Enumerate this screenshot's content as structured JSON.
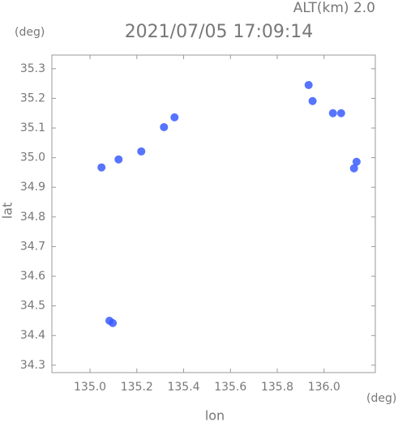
{
  "chart_data": {
    "type": "scatter",
    "title": "2021/07/05 17:09:14",
    "subtitle": "ALT(km) 2.0",
    "y_unit": "(deg)",
    "x_unit": "(deg)",
    "ylabel": "lat",
    "xlabel": "lon",
    "color": "#3a5cff",
    "x": [
      135.934,
      135.951,
      136.038,
      136.073,
      136.139,
      136.128,
      135.049,
      135.122,
      135.219,
      135.316,
      135.361,
      135.083,
      135.097
    ],
    "values": [
      35.245,
      35.191,
      35.15,
      35.15,
      34.986,
      34.964,
      34.967,
      34.994,
      35.021,
      35.103,
      35.136,
      34.45,
      34.442
    ],
    "xlim": [
      134.837,
      136.219
    ],
    "ylim": [
      34.275,
      35.346
    ],
    "xticks": [
      {
        "value": 135,
        "label": "135.0"
      },
      135.2,
      135.4,
      135.6,
      135.8,
      {
        "value": 136,
        "label": "136.0"
      }
    ],
    "yticks": [
      34.3,
      34.4,
      34.5,
      34.6,
      34.7,
      34.8,
      34.9,
      {
        "value": 35,
        "label": "35.0"
      },
      35.1,
      35.2,
      35.3
    ]
  }
}
